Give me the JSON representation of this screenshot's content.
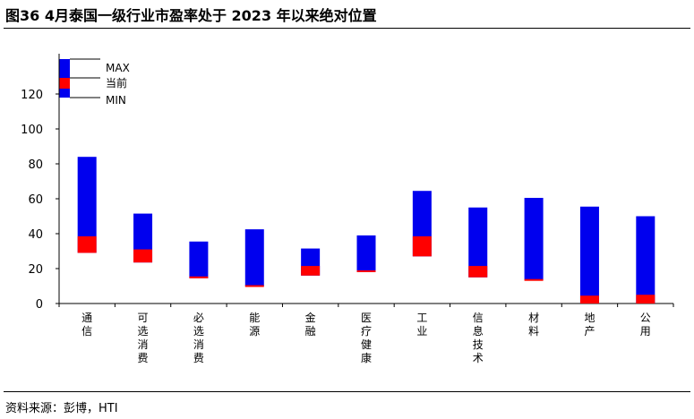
{
  "title": "图36 4月泰国一级行业市盈率处于 2023 年以来绝对位置",
  "source": "资料来源：彭博，HTI",
  "colors": {
    "range": "#0000ee",
    "current": "#ff0000"
  },
  "chart_data": {
    "type": "bar",
    "subtype": "floating-range",
    "categories": [
      "通信",
      "可选消费",
      "必选消费",
      "能源",
      "金融",
      "医疗健康",
      "工业",
      "信息技术",
      "材料",
      "地产",
      "公用"
    ],
    "series": [
      {
        "name": "MAX",
        "values": [
          84,
          51.5,
          35.5,
          42.5,
          31.5,
          39,
          64.5,
          55,
          60.5,
          55.5,
          50
        ]
      },
      {
        "name": "当前",
        "values": [
          38.5,
          31,
          15.5,
          10.5,
          21.5,
          19,
          38.5,
          21.5,
          14,
          4.5,
          5
        ]
      },
      {
        "name": "MIN",
        "values": [
          29,
          23.5,
          14.5,
          10,
          16,
          18,
          27,
          15,
          13.5,
          0,
          0
        ]
      }
    ],
    "yticks": [
      0,
      20,
      40,
      60,
      80,
      100,
      120
    ],
    "ylim": [
      0,
      140
    ],
    "grid": false,
    "legend": {
      "position": "top-left",
      "items": [
        "MAX",
        "当前",
        "MIN"
      ]
    }
  }
}
